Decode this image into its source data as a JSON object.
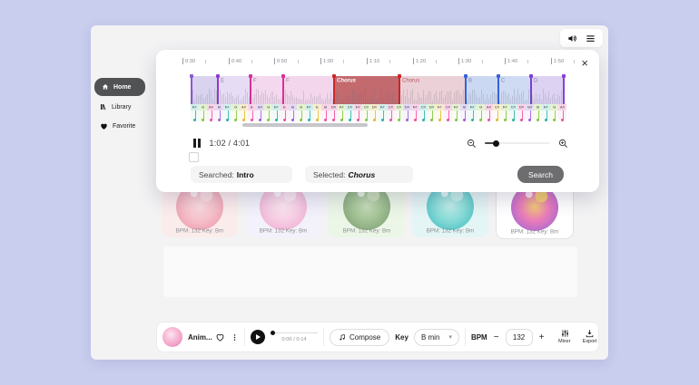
{
  "sidebar": {
    "items": [
      {
        "label": "Home",
        "active": true
      },
      {
        "label": "Library",
        "active": false
      },
      {
        "label": "Favorite",
        "active": false
      }
    ]
  },
  "modal": {
    "ruler_labels": [
      "0:30",
      "0:40",
      "0:50",
      "1:00",
      "1:10",
      "1:20",
      "1:30",
      "1:40",
      "1:50"
    ],
    "sections": [
      {
        "label": "",
        "width": 29,
        "bg": "#d9d3f0",
        "pin": "#8a5ad0",
        "fg": "#8a82a8",
        "bold": false,
        "italic": false
      },
      {
        "label": "E",
        "width": 36,
        "bg": "#e6dcf4",
        "pin": "#9239cf",
        "fg": "#8c80a5",
        "bold": false,
        "italic": false
      },
      {
        "label": "F",
        "width": 36,
        "bg": "#f4d8ed",
        "pin": "#d8309b",
        "fg": "#a07e97",
        "bold": false,
        "italic": false
      },
      {
        "label": "F",
        "width": 56,
        "bg": "#f3d6ec",
        "pin": "#d8309b",
        "fg": "#a07e97",
        "bold": false,
        "italic": false
      },
      {
        "label": "Chorus",
        "width": 72,
        "bg": "#c36a6e",
        "pin": "#cc2626",
        "fg": "#ffffff",
        "bold": true,
        "italic": true
      },
      {
        "label": "Chorus",
        "width": 73,
        "bg": "#ecd0d7",
        "pin": "#cc2626",
        "fg": "#b4565e",
        "bold": false,
        "italic": false
      },
      {
        "label": "B",
        "width": 36,
        "bg": "#cbd8f2",
        "pin": "#3562d6",
        "fg": "#7e8ab0",
        "bold": false,
        "italic": false
      },
      {
        "label": "C",
        "width": 36,
        "bg": "#cfdaf3",
        "pin": "#3562d6",
        "fg": "#7e8ab0",
        "bold": false,
        "italic": false
      },
      {
        "label": "D",
        "width": 37,
        "bg": "#ddd2f2",
        "pin": "#7a3fd4",
        "fg": "#8a7cae",
        "bold": false,
        "italic": false
      }
    ],
    "end_pin_color": "#8a3fd8",
    "notes": {
      "palette": [
        {
          "bg": "#d2f0ec",
          "fg": "#2bb3a3"
        },
        {
          "bg": "#e4f3d0",
          "fg": "#84c53e"
        },
        {
          "bg": "#fad4e8",
          "fg": "#ee4e9e"
        },
        {
          "bg": "#e6daf4",
          "fg": "#9c5ed8"
        },
        {
          "bg": "#f7edcb",
          "fg": "#e0ba32"
        }
      ],
      "items": [
        [
          "F#",
          0
        ],
        [
          "G",
          1
        ],
        [
          "A#",
          2
        ],
        [
          "B",
          3
        ],
        [
          "F#",
          0
        ],
        [
          "G",
          1
        ],
        [
          "A#",
          4
        ],
        [
          "E",
          2
        ],
        [
          "A#",
          3
        ],
        [
          "G",
          1
        ],
        [
          "F#",
          0
        ],
        [
          "E",
          2
        ],
        [
          "B",
          3
        ],
        [
          "G",
          1
        ],
        [
          "F#",
          0
        ],
        [
          "E",
          4
        ],
        [
          "B",
          2
        ],
        [
          "D#",
          2
        ],
        [
          "F#",
          1
        ],
        [
          "C#",
          0
        ],
        [
          "F#",
          2
        ],
        [
          "C#",
          1
        ],
        [
          "D#",
          4
        ],
        [
          "F#",
          0
        ],
        [
          "C#",
          2
        ],
        [
          "C#",
          1
        ],
        [
          "D#",
          3
        ],
        [
          "F#",
          2
        ],
        [
          "C#",
          0
        ],
        [
          "D#",
          1
        ],
        [
          "F#",
          4
        ],
        [
          "C#",
          2
        ],
        [
          "F#",
          1
        ],
        [
          "B",
          3
        ],
        [
          "F#",
          0
        ],
        [
          "G",
          1
        ],
        [
          "A#",
          2
        ],
        [
          "C#",
          4
        ],
        [
          "F#",
          1
        ],
        [
          "C#",
          0
        ],
        [
          "D#",
          2
        ],
        [
          "G#",
          3
        ],
        [
          "B",
          1
        ],
        [
          "F#",
          0
        ],
        [
          "G",
          1
        ],
        [
          "A#",
          2
        ]
      ]
    },
    "time_display": "1:02 / 4:01",
    "searched_label": "Searched:",
    "searched_value": "Intro",
    "selected_label": "Selected:",
    "selected_value": "Chorus",
    "search_button": "Search"
  },
  "cards": [
    {
      "bpm_key": "BPM: 132 Key: Bm",
      "bg": "#fbecec",
      "selected": false,
      "circle": [
        "#efa3b4",
        "#f6c2cb",
        "#fbdde1"
      ]
    },
    {
      "bpm_key": "BPM: 132 Key: Bm",
      "bg": "#f3f1fa",
      "selected": false,
      "circle": [
        "#f0b4d6",
        "#f7d0e5",
        "#fce8f1"
      ]
    },
    {
      "bpm_key": "BPM: 132 Key: Bm",
      "bg": "#ecf6e7",
      "selected": false,
      "circle": [
        "#87a87c",
        "#a4c496",
        "#c8ddba"
      ]
    },
    {
      "bpm_key": "BPM: 132 Key: Bm",
      "bg": "#e4f5f5",
      "selected": false,
      "circle": [
        "#56c6c6",
        "#8bdcd8",
        "#c2eeea"
      ]
    },
    {
      "bpm_key": "BPM: 132 Key: Bm",
      "bg": "#ffffff",
      "selected": true,
      "circle": [
        "#b06ace",
        "#ea7cba",
        "#f2ca74"
      ]
    }
  ],
  "player": {
    "track_title": "Anim...",
    "time": "0:00 / 0:14",
    "compose_label": "Compose",
    "key_label": "Key",
    "key_value": "B min",
    "bpm_label": "BPM",
    "bpm_minus": "−",
    "bpm_value": "132",
    "bpm_plus": "+",
    "mixer_label": "Mixer",
    "export_label": "Export"
  }
}
